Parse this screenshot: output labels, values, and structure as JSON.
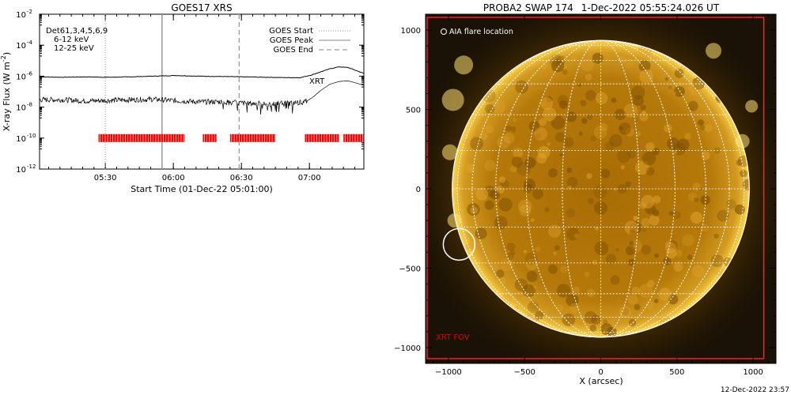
{
  "footer_timestamp": "12-Dec-2022 23:57",
  "chart_data": [
    {
      "type": "line",
      "title": "GOES17 XRS",
      "xlabel": "Start Time (01-Dec-22 05:01:00)",
      "ylabel_prefix": "X-ray Flux (W m",
      "ylabel_exp": "-2",
      "ylabel_suffix": ")",
      "x_range": [
        "05:01",
        "07:24"
      ],
      "y_scale": "log",
      "ylim_exp": [
        -12,
        -2
      ],
      "y_ticks": [
        {
          "value": 0.01,
          "exp": "-2"
        },
        {
          "value": 0.0001,
          "exp": "-4"
        },
        {
          "value": 1e-06,
          "exp": "-6"
        },
        {
          "value": 1e-08,
          "exp": "-8"
        },
        {
          "value": 1e-10,
          "exp": "-10"
        },
        {
          "value": 1e-12,
          "exp": "-12"
        }
      ],
      "x_ticks": [
        "05:30",
        "06:00",
        "06:30",
        "07:00"
      ],
      "x_tick_minutes": [
        29,
        59,
        89,
        119
      ],
      "detector_label": "Det61,3,4,5,6,9",
      "band_labels": [
        {
          "text": "6-12 keV",
          "color": "#cc00cc"
        },
        {
          "text": "12-25 keV",
          "color": "#00cc00"
        }
      ],
      "legend": [
        "GOES Start",
        "GOES Peak",
        "GOES End"
      ],
      "events": {
        "start_min": 29,
        "peak_min": 54,
        "end_min": 88
      },
      "annotation": "XRT",
      "series": [
        {
          "name": "upper channel",
          "minutes": [
            0,
            10,
            20,
            30,
            40,
            50,
            60,
            70,
            80,
            90,
            100,
            110,
            115,
            120,
            124,
            128,
            132,
            136,
            140,
            143
          ],
          "values": [
            9e-07,
            8.5e-07,
            9e-07,
            8.5e-07,
            9e-07,
            1e-06,
            1.1e-06,
            1e-06,
            9.5e-07,
            9e-07,
            8.5e-07,
            8e-07,
            8e-07,
            1.2e-06,
            1.9e-06,
            3e-06,
            4e-06,
            3.6e-06,
            2.2e-06,
            1.5e-06
          ]
        },
        {
          "name": "lower channel",
          "minutes": [
            0,
            10,
            20,
            30,
            40,
            50,
            60,
            70,
            80,
            90,
            100,
            110,
            115,
            118,
            121,
            124,
            128,
            132,
            136,
            140,
            143
          ],
          "values": [
            3e-08,
            3e-08,
            2.5e-08,
            2.7e-08,
            3e-08,
            3.2e-08,
            2.6e-08,
            2.2e-08,
            2.2e-08,
            1.8e-08,
            1.6e-08,
            1.8e-08,
            2e-08,
            2.5e-08,
            5e-08,
            1.2e-07,
            3e-07,
            4.5e-07,
            5e-07,
            3.5e-07,
            2.5e-07
          ]
        }
      ],
      "xrt_coverage_minutes": [
        [
          26,
          64
        ],
        [
          72,
          78
        ],
        [
          84,
          104
        ],
        [
          117,
          132
        ],
        [
          134,
          143
        ]
      ],
      "colors": {
        "coverage": "#ff0000",
        "annotation": "#ff0000",
        "line": "#000000"
      }
    },
    {
      "type": "image",
      "title": "PROBA2 SWAP 174",
      "date": "1-Dec-2022 05:55:24.026 UT",
      "xlabel": "X (arcsec)",
      "x_ticks": [
        -1000,
        -500,
        0,
        500,
        1000
      ],
      "y_ticks": [
        1000,
        500,
        0,
        -500,
        -1000
      ],
      "xlim": [
        -1150,
        1150
      ],
      "ylim": [
        -1100,
        1100
      ],
      "solar_radius_arcsec": 975,
      "legend_label": "AIA flare location",
      "fov_label": "XRT FOV",
      "flare_location": {
        "x": -930,
        "y": -350
      },
      "xrt_fov": {
        "x": [
          -1140,
          1070
        ],
        "y": [
          -1070,
          1080
        ]
      },
      "grid_step_deg": 15,
      "colors": {
        "disk": "#b87a08",
        "limb": "#ffd24a",
        "grid": "#ffffff",
        "fov": "#ff2020",
        "fov_label": "#dd0000"
      }
    }
  ]
}
